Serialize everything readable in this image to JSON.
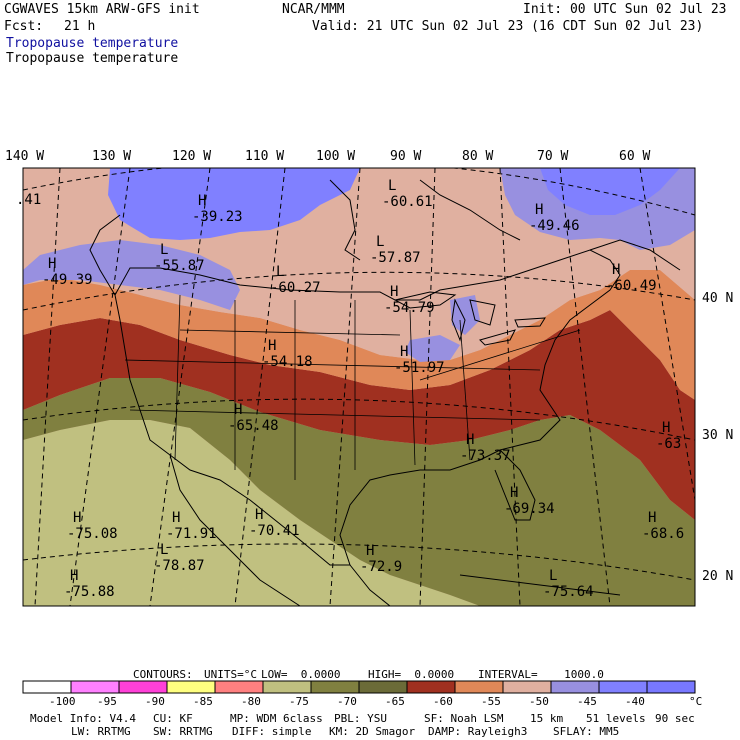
{
  "header": {
    "model_line": "CGWAVES 15km ARW-GFS init",
    "org": "NCAR/MMM",
    "init": "Init: 00 UTC Sun 02 Jul 23",
    "fcst_label": "Fcst:",
    "fcst_value": "21 h",
    "valid": "Valid: 21 UTC Sun 02 Jul 23 (16 CDT Sun 02 Jul 23)",
    "field_title_1": "Tropopause temperature",
    "field_title_2": "Tropopause temperature"
  },
  "map": {
    "lon_labels": [
      "140 W",
      "130 W",
      "120 W",
      "110 W",
      "100 W",
      "90 W",
      "80 W",
      "70 W",
      "60 W"
    ],
    "lat_labels": [
      "40 N",
      "30 N",
      "20 N"
    ],
    "extrema": [
      {
        "type": "",
        "value": ".41"
      },
      {
        "type": "H",
        "value": "-39.23"
      },
      {
        "type": "L",
        "value": "-60.61"
      },
      {
        "type": "H",
        "value": "-49.46"
      },
      {
        "type": "H",
        "value": "-49.39"
      },
      {
        "type": "L",
        "value": "-55.87"
      },
      {
        "type": "L",
        "value": "-57.87"
      },
      {
        "type": "L",
        "value": "-60.27"
      },
      {
        "type": "H",
        "value": "-54.79"
      },
      {
        "type": "H",
        "value": "-60.49"
      },
      {
        "type": "H",
        "value": "-54.18"
      },
      {
        "type": "H",
        "value": "-51.97"
      },
      {
        "type": "H",
        "value": "-65.48"
      },
      {
        "type": "H",
        "value": "-73.37"
      },
      {
        "type": "H",
        "value": "-63"
      },
      {
        "type": "H",
        "value": "-75.08"
      },
      {
        "type": "H",
        "value": "-71.91"
      },
      {
        "type": "H",
        "value": "-70.41"
      },
      {
        "type": "H",
        "value": "-69.34"
      },
      {
        "type": "H",
        "value": "-68.6"
      },
      {
        "type": "L",
        "value": "-78.87"
      },
      {
        "type": "H",
        "value": "-72.9"
      },
      {
        "type": "H",
        "value": "-75.88"
      },
      {
        "type": "L",
        "value": "-75.64"
      }
    ]
  },
  "contours_line": {
    "contours": "CONTOURS:",
    "units": "UNITS=°C",
    "low": "LOW=  0.0000",
    "high": "HIGH=  0.0000",
    "interval": "INTERVAL=    1000.0"
  },
  "colorbar": {
    "colors": [
      "#ffffff",
      "#ff80ff",
      "#ff40d8",
      "#ffff80",
      "#ff8080",
      "#c0c080",
      "#808040",
      "#6b6b38",
      "#a03020",
      "#e08858",
      "#e0b0a0",
      "#9890e0",
      "#8080ff",
      "#7878ff"
    ],
    "labels": [
      "-100",
      "-95",
      "-90",
      "-85",
      "-80",
      "-75",
      "-70",
      "-65",
      "-60",
      "-55",
      "-50",
      "-45",
      "-40"
    ],
    "unit": "°C"
  },
  "footer": {
    "line1": [
      "Model Info: V4.4",
      "CU: KF",
      "MP: WDM 6class",
      "PBL: YSU",
      "SF: Noah LSM",
      "15 km",
      "51 levels",
      "90 sec"
    ],
    "line2": [
      "LW: RRTMG",
      "SW: RRTMG",
      "DIFF: simple",
      "KM: 2D Smagor",
      "DAMP: Rayleigh3",
      "SFLAY: MM5"
    ]
  }
}
